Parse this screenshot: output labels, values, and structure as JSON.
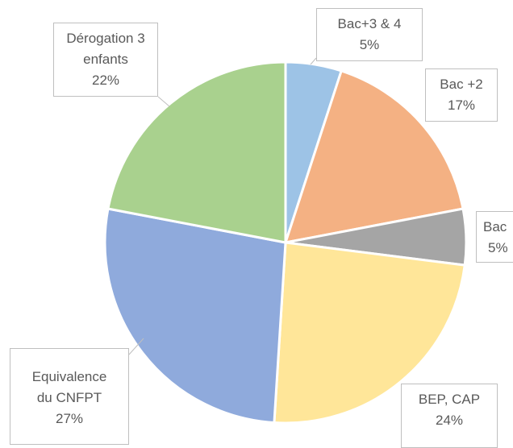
{
  "chart_data": {
    "type": "pie",
    "categories": [
      "Bac+3 & 4",
      "Bac +2",
      "Bac",
      "BEP, CAP",
      "Equivalence du CNFPT",
      "Dérogation 3 enfants"
    ],
    "values": [
      5,
      17,
      5,
      24,
      27,
      22
    ],
    "value_labels": [
      "5%",
      "17%",
      "5%",
      "24%",
      "27%",
      "22%"
    ],
    "colors": [
      "#9dc3e6",
      "#f4b183",
      "#a5a5a5",
      "#ffe699",
      "#8faadc",
      "#a9d18e"
    ]
  }
}
